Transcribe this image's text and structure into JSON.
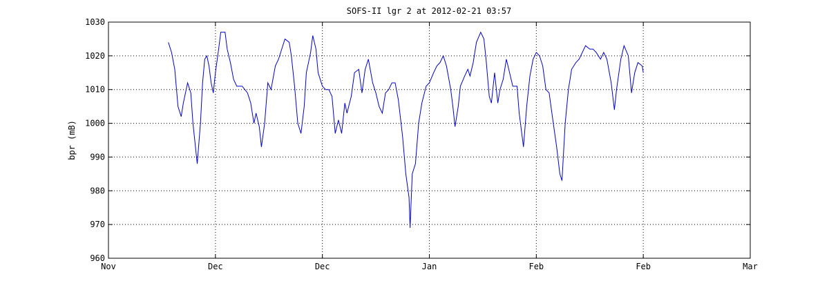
{
  "chart_data": {
    "type": "line",
    "title": "SOFS-II lgr 2 at 2012-02-21 03:57",
    "ylabel": "bpr (mB)",
    "xlim": [
      0,
      6
    ],
    "xticks": [
      {
        "value": 0,
        "label": "Nov"
      },
      {
        "value": 1,
        "label": "Dec"
      },
      {
        "value": 2,
        "label": "Dec"
      },
      {
        "value": 3,
        "label": "Jan"
      },
      {
        "value": 4,
        "label": "Feb"
      },
      {
        "value": 5,
        "label": "Feb"
      },
      {
        "value": 6,
        "label": "Mar"
      }
    ],
    "ylim": [
      960,
      1030
    ],
    "yticks": [
      960,
      970,
      980,
      990,
      1000,
      1010,
      1020,
      1030
    ],
    "grid": true,
    "x": [
      0.56,
      0.59,
      0.62,
      0.65,
      0.68,
      0.7,
      0.74,
      0.77,
      0.79,
      0.83,
      0.86,
      0.88,
      0.9,
      0.92,
      0.94,
      0.96,
      0.98,
      1.0,
      1.03,
      1.05,
      1.09,
      1.11,
      1.14,
      1.17,
      1.2,
      1.25,
      1.3,
      1.33,
      1.36,
      1.38,
      1.41,
      1.43,
      1.46,
      1.49,
      1.52,
      1.56,
      1.59,
      1.62,
      1.65,
      1.69,
      1.71,
      1.74,
      1.77,
      1.8,
      1.83,
      1.85,
      1.89,
      1.91,
      1.94,
      1.96,
      2.0,
      2.03,
      2.06,
      2.09,
      2.12,
      2.15,
      2.18,
      2.21,
      2.23,
      2.27,
      2.3,
      2.34,
      2.37,
      2.4,
      2.43,
      2.47,
      2.5,
      2.53,
      2.56,
      2.59,
      2.62,
      2.65,
      2.68,
      2.71,
      2.75,
      2.78,
      2.81,
      2.82,
      2.84,
      2.87,
      2.9,
      2.93,
      2.97,
      3.0,
      3.04,
      3.07,
      3.1,
      3.13,
      3.16,
      3.2,
      3.22,
      3.24,
      3.27,
      3.29,
      3.33,
      3.36,
      3.38,
      3.41,
      3.44,
      3.48,
      3.51,
      3.53,
      3.56,
      3.58,
      3.61,
      3.64,
      3.66,
      3.69,
      3.72,
      3.75,
      3.78,
      3.82,
      3.84,
      3.88,
      3.91,
      3.94,
      3.97,
      4.0,
      4.03,
      4.06,
      4.09,
      4.12,
      4.15,
      4.19,
      4.22,
      4.24,
      4.27,
      4.3,
      4.33,
      4.37,
      4.4,
      4.43,
      4.46,
      4.5,
      4.53,
      4.56,
      4.6,
      4.63,
      4.66,
      4.7,
      4.73,
      4.75,
      4.79,
      4.82,
      4.86,
      4.89,
      4.92,
      4.95,
      4.99,
      5.0
    ],
    "series": [
      {
        "name": "bpr",
        "color": "#0000cc",
        "values": [
          1024,
          1021,
          1016,
          1005,
          1002,
          1006,
          1012,
          1009,
          1000,
          988,
          1000,
          1012,
          1019,
          1020,
          1017,
          1012,
          1009,
          1015,
          1022,
          1027,
          1027,
          1022,
          1018,
          1013,
          1011,
          1011,
          1009,
          1006,
          1000,
          1003,
          999,
          993,
          1000,
          1012,
          1010,
          1017,
          1019,
          1022,
          1025,
          1024,
          1020,
          1011,
          1000,
          997,
          1005,
          1015,
          1021,
          1026,
          1022,
          1015,
          1011,
          1010,
          1010,
          1008,
          997,
          1001,
          997,
          1006,
          1003,
          1008,
          1015,
          1016,
          1009,
          1016,
          1019,
          1012,
          1009,
          1005,
          1003,
          1009,
          1010,
          1012,
          1012,
          1007,
          996,
          985,
          978,
          969,
          985,
          988,
          1000,
          1006,
          1011,
          1012,
          1015,
          1017,
          1018,
          1020,
          1017,
          1010,
          1005,
          999,
          1005,
          1011,
          1014,
          1016,
          1014,
          1018,
          1024,
          1027,
          1025,
          1019,
          1008,
          1006,
          1015,
          1006,
          1010,
          1013,
          1019,
          1015,
          1011,
          1011,
          1003,
          993,
          1005,
          1014,
          1019,
          1021,
          1020,
          1017,
          1010,
          1009,
          1002,
          993,
          985,
          983,
          1000,
          1010,
          1016,
          1018,
          1019,
          1021,
          1023,
          1022,
          1022,
          1021,
          1019,
          1021,
          1019,
          1012,
          1004,
          1010,
          1019,
          1023,
          1020,
          1009,
          1015,
          1018,
          1017,
          1015
        ]
      }
    ]
  }
}
